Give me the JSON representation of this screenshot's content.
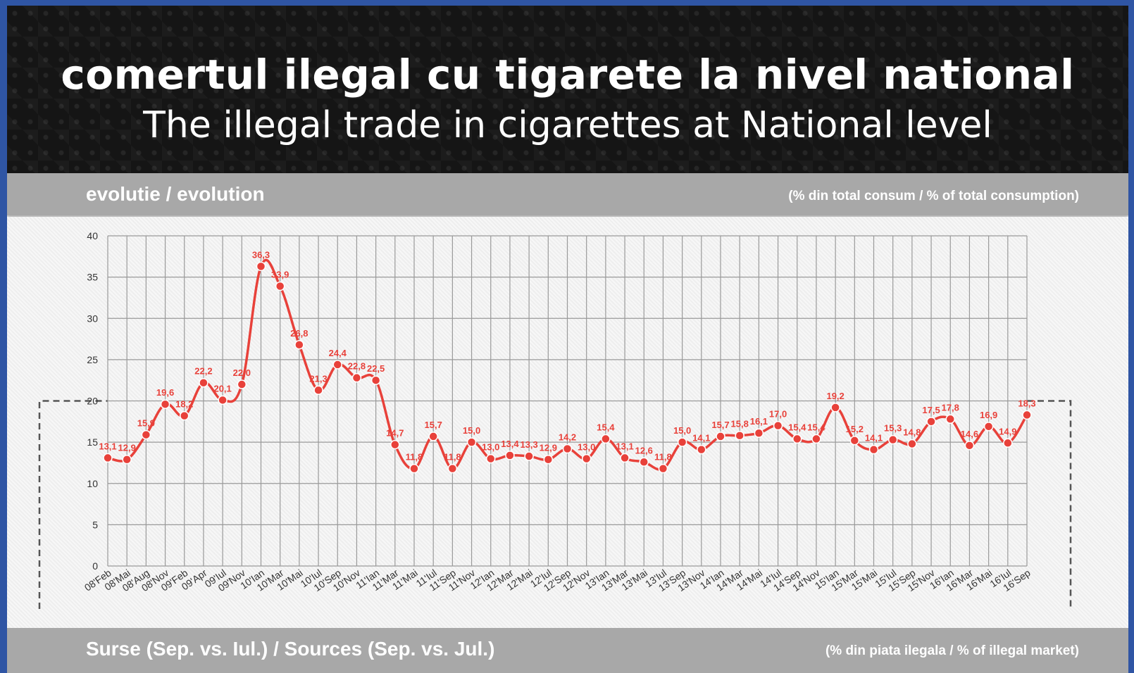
{
  "header": {
    "title_ro": "comertul ilegal cu tigarete la nivel national",
    "title_en": "The illegal trade in cigarettes at National level"
  },
  "section_top": {
    "left": "evolutie / evolution",
    "right": "(% din total consum / % of total consumption)"
  },
  "section_bottom": {
    "left": "Surse (Sep. vs. Iul.) / Sources (Sep. vs. Jul.)",
    "right": "(% din piata ilegala / % of illegal market)"
  },
  "colors": {
    "series": "#e8413a",
    "label": "#e8413a",
    "grid": "#9a9a9a"
  },
  "chart_data": {
    "type": "line",
    "title": "",
    "xlabel": "",
    "ylabel": "",
    "ylim": [
      0,
      40
    ],
    "yticks": [
      0,
      5,
      10,
      15,
      20,
      25,
      30,
      35,
      40
    ],
    "grid": true,
    "categories": [
      "08'Feb",
      "08'Mai",
      "08'Aug",
      "08'Nov",
      "09'Feb",
      "09'Apr",
      "09'Iul",
      "09'Nov",
      "10'Ian",
      "10'Mar",
      "10'Mai",
      "10'Iul",
      "10'Sep",
      "10'Nov",
      "11'Ian",
      "11'Mar",
      "11'Mai",
      "11'Iul",
      "11'Sep",
      "11'Nov",
      "12'Ian",
      "12'Mar",
      "12'Mai",
      "12'Iul",
      "12'Sep",
      "12'Nov",
      "13'Ian",
      "13'Mar",
      "13'Mai",
      "13'Iul",
      "13'Sep",
      "13'Nov",
      "14'Ian",
      "14'Mar",
      "14'Mai",
      "14'Iul",
      "14'Sep",
      "14'Nov",
      "15'Ian",
      "15'Mar",
      "15'Mai",
      "15'Iul",
      "15'Sep",
      "15'Nov",
      "16'Ian",
      "16'Mar",
      "16'Mai",
      "16'Iul",
      "16'Sep"
    ],
    "series": [
      {
        "values": [
          13.1,
          12.9,
          15.9,
          19.6,
          18.2,
          22.2,
          20.1,
          22.0,
          36.3,
          33.9,
          26.8,
          21.3,
          24.4,
          22.8,
          22.5,
          14.7,
          11.8,
          15.7,
          11.8,
          15.0,
          13.0,
          13.4,
          13.3,
          12.9,
          14.2,
          13.0,
          15.4,
          13.1,
          12.6,
          11.8,
          15.0,
          14.1,
          15.7,
          15.8,
          16.1,
          17.0,
          15.4,
          15.4,
          19.2,
          15.2,
          14.1,
          15.3,
          14.8,
          17.5,
          17.8,
          14.6,
          16.9,
          14.9,
          18.3
        ],
        "labels": [
          "13,1",
          "12,9",
          "15,9",
          "19,6",
          "18,2",
          "22,2",
          "20,1",
          "22,0",
          "36,3",
          "33,9",
          "26,8",
          "21,3",
          "24,4",
          "22,8",
          "22,5",
          "14,7",
          "11,8",
          "15,7",
          "11,8",
          "15,0",
          "13,0",
          "13,4",
          "13,3",
          "12,9",
          "14,2",
          "13,0",
          "15,4",
          "13,1",
          "12,6",
          "11,8",
          "15,0",
          "14,1",
          "15,7",
          "15,8",
          "16,1",
          "17,0",
          "15,4",
          "15,4",
          "19,2",
          "15,2",
          "14,1",
          "15,3",
          "14,8",
          "17,5",
          "17,8",
          "14,6",
          "16,9",
          "14,9",
          "18,3"
        ]
      }
    ]
  }
}
